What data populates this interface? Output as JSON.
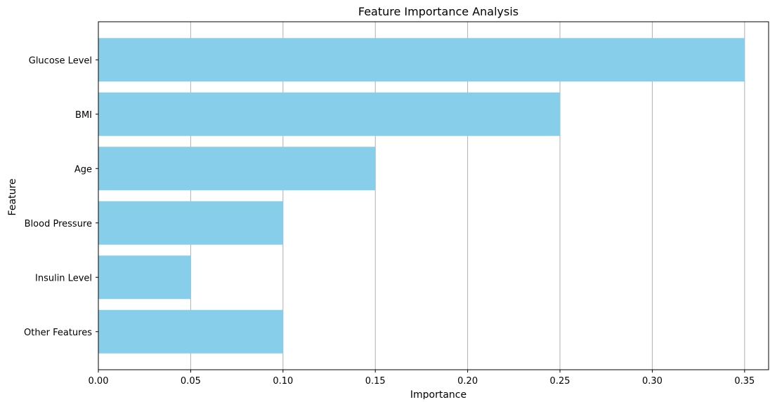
{
  "chart_data": {
    "type": "bar",
    "orientation": "horizontal",
    "title": "Feature Importance Analysis",
    "xlabel": "Importance",
    "ylabel": "Feature",
    "categories": [
      "Glucose Level",
      "BMI",
      "Age",
      "Blood Pressure",
      "Insulin Level",
      "Other Features"
    ],
    "values": [
      0.35,
      0.25,
      0.15,
      0.1,
      0.05,
      0.1
    ],
    "xlim": [
      0,
      0.363
    ],
    "xticks": [
      "0.00",
      "0.05",
      "0.10",
      "0.15",
      "0.20",
      "0.25",
      "0.30",
      "0.35"
    ],
    "grid": "vertical",
    "bar_color": "#87CEEB",
    "grid_color": "#b0b0b0"
  }
}
